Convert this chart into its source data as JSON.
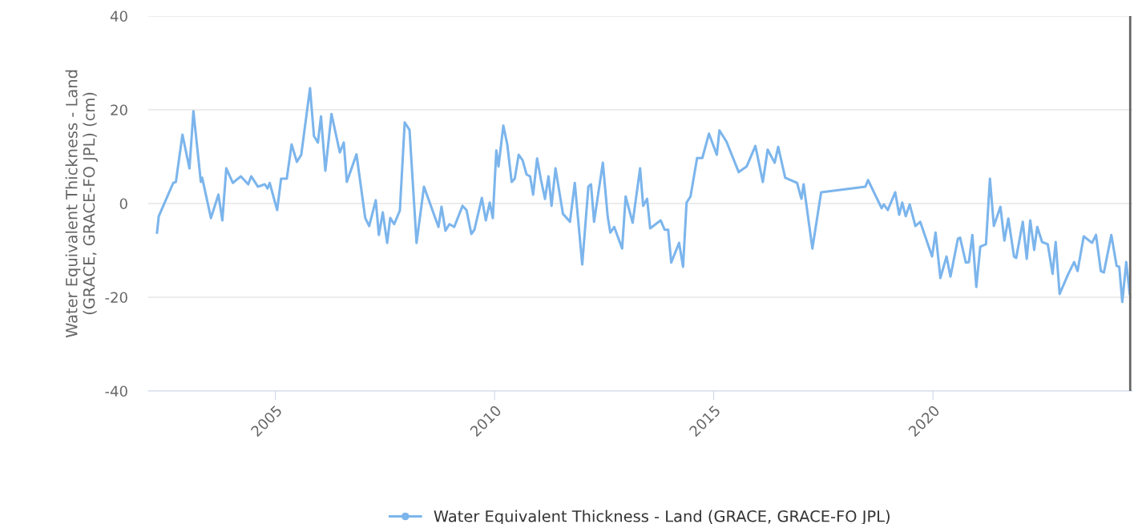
{
  "chart_data": {
    "type": "line",
    "ylabel": "Water Equivalent Thickness - Land\n(GRACE, GRACE-FO JPL) (cm)",
    "series": [
      {
        "name": "Water Equivalent Thickness - Land (GRACE, GRACE-FO JPL)",
        "color": "#7cb5ec",
        "x": [
          2002.3,
          2002.34,
          2002.67,
          2002.73,
          2002.88,
          2003.04,
          2003.13,
          2003.3,
          2003.33,
          2003.53,
          2003.7,
          2003.79,
          2003.88,
          2004.03,
          2004.21,
          2004.38,
          2004.45,
          2004.6,
          2004.76,
          2004.82,
          2004.87,
          2005.04,
          2005.13,
          2005.26,
          2005.37,
          2005.49,
          2005.59,
          2005.79,
          2005.88,
          2005.97,
          2006.04,
          2006.14,
          2006.28,
          2006.47,
          2006.56,
          2006.63,
          2006.85,
          2007.05,
          2007.14,
          2007.29,
          2007.36,
          2007.45,
          2007.55,
          2007.62,
          2007.71,
          2007.84,
          2007.95,
          2008.06,
          2008.22,
          2008.39,
          2008.72,
          2008.79,
          2008.88,
          2008.97,
          2009.08,
          2009.27,
          2009.36,
          2009.47,
          2009.54,
          2009.71,
          2009.8,
          2009.89,
          2009.96,
          2010.04,
          2010.09,
          2010.2,
          2010.29,
          2010.39,
          2010.46,
          2010.55,
          2010.64,
          2010.73,
          2010.81,
          2010.88,
          2010.97,
          2011.06,
          2011.15,
          2011.23,
          2011.3,
          2011.39,
          2011.56,
          2011.72,
          2011.83,
          2012.0,
          2012.14,
          2012.2,
          2012.27,
          2012.47,
          2012.58,
          2012.64,
          2012.73,
          2012.91,
          2012.99,
          2013.15,
          2013.32,
          2013.39,
          2013.48,
          2013.55,
          2013.79,
          2013.88,
          2013.96,
          2014.03,
          2014.21,
          2014.3,
          2014.38,
          2014.47,
          2014.62,
          2014.74,
          2014.89,
          2015.07,
          2015.13,
          2015.29,
          2015.57,
          2015.75,
          2015.95,
          2016.12,
          2016.23,
          2016.39,
          2016.47,
          2016.63,
          2016.9,
          2017.0,
          2017.05,
          2017.25,
          2017.45,
          2018.46,
          2018.52,
          2018.83,
          2018.88,
          2018.97,
          2019.14,
          2019.23,
          2019.3,
          2019.38,
          2019.47,
          2019.6,
          2019.71,
          2019.98,
          2020.06,
          2020.17,
          2020.31,
          2020.4,
          2020.57,
          2020.62,
          2020.75,
          2020.82,
          2020.9,
          2020.99,
          2021.08,
          2021.21,
          2021.3,
          2021.39,
          2021.54,
          2021.63,
          2021.72,
          2021.85,
          2021.9,
          2022.05,
          2022.14,
          2022.22,
          2022.31,
          2022.38,
          2022.49,
          2022.62,
          2022.73,
          2022.8,
          2022.89,
          2023.08,
          2023.22,
          2023.3,
          2023.44,
          2023.63,
          2023.72,
          2023.83,
          2023.9,
          2024.07,
          2024.19,
          2024.25,
          2024.32,
          2024.41,
          2024.49
        ],
        "values": [
          -6.2,
          -2.7,
          4.4,
          4.6,
          14.7,
          7.5,
          19.7,
          4.6,
          5.5,
          -3.1,
          1.9,
          -3.6,
          7.5,
          4.4,
          5.8,
          4.1,
          5.8,
          3.6,
          4.1,
          3.2,
          4.4,
          -1.4,
          5.3,
          5.3,
          12.6,
          8.9,
          10.4,
          24.6,
          14.4,
          13.0,
          18.6,
          7.0,
          19.1,
          10.9,
          13.0,
          4.6,
          10.5,
          -3.1,
          -4.8,
          0.7,
          -6.7,
          -1.9,
          -8.4,
          -3.1,
          -4.4,
          -1.5,
          17.3,
          15.7,
          -8.4,
          3.6,
          -5.0,
          -0.7,
          -5.8,
          -4.4,
          -5.0,
          -0.5,
          -1.4,
          -6.5,
          -5.6,
          1.2,
          -3.6,
          0.2,
          -3.1,
          11.3,
          7.9,
          16.6,
          12.6,
          4.6,
          5.3,
          10.4,
          9.2,
          6.2,
          5.8,
          1.9,
          9.6,
          5.0,
          1.0,
          5.8,
          -0.5,
          7.5,
          -2.2,
          -3.9,
          4.4,
          -13.0,
          3.6,
          4.1,
          -3.9,
          8.7,
          -2.7,
          -6.2,
          -5.0,
          -9.6,
          1.5,
          -4.1,
          7.5,
          -0.5,
          1.0,
          -5.3,
          -3.6,
          -5.6,
          -5.6,
          -12.6,
          -8.4,
          -13.5,
          0.2,
          1.5,
          9.7,
          9.7,
          14.9,
          10.4,
          15.6,
          13.2,
          6.7,
          7.9,
          12.3,
          4.6,
          11.5,
          8.7,
          12.1,
          5.5,
          4.4,
          1.0,
          4.1,
          -9.6,
          2.4,
          3.6,
          5.0,
          -1.0,
          -0.2,
          -1.4,
          2.4,
          -2.4,
          0.2,
          -2.7,
          -0.2,
          -4.8,
          -3.9,
          -11.3,
          -6.2,
          -15.9,
          -11.3,
          -15.6,
          -7.5,
          -7.3,
          -12.6,
          -12.5,
          -6.7,
          -17.8,
          -9.2,
          -8.7,
          5.3,
          -4.8,
          -0.7,
          -7.9,
          -3.2,
          -11.3,
          -11.6,
          -3.9,
          -11.8,
          -3.6,
          -9.9,
          -5.0,
          -8.2,
          -8.7,
          -15.0,
          -8.2,
          -19.3,
          -15.2,
          -12.5,
          -14.4,
          -7.0,
          -8.4,
          -6.7,
          -14.4,
          -14.7,
          -6.7,
          -13.3,
          -13.5,
          -21.0,
          -12.5,
          -19.3
        ]
      }
    ],
    "xlim": [
      2002.1,
      2024.55
    ],
    "xticks": [
      2005,
      2010,
      2015,
      2020
    ],
    "ylim": [
      -40,
      40
    ],
    "yticks": [
      -40,
      -20,
      0,
      20,
      40
    ],
    "ref_lines": [
      {
        "axis": "x",
        "value": 2024.5,
        "color": "#666666"
      }
    ],
    "grid": "y",
    "legend": "bottom",
    "line_style": "solid"
  }
}
